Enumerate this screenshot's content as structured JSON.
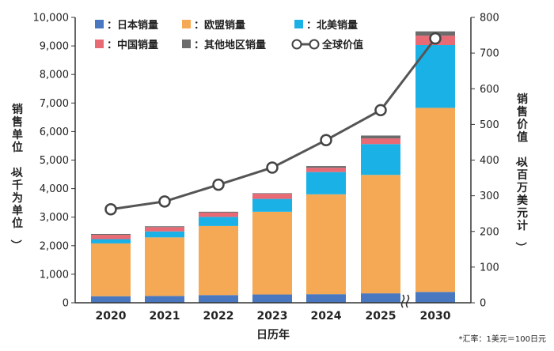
{
  "chart_data": {
    "type": "bar",
    "stacked": true,
    "categories": [
      "2020",
      "2021",
      "2022",
      "2023",
      "2024",
      "2025",
      "2030"
    ],
    "axis_break_before": "2030",
    "xlabel": "日历年",
    "ylabel_left": "销售单位（以千为单位）",
    "ylabel_right": "销售价值（以百万美元计）",
    "ylim_left": [
      0,
      10000
    ],
    "yticks_left": [
      "0",
      "1,000",
      "2,000",
      "3,000",
      "4,000",
      "5,000",
      "6,000",
      "7,000",
      "8,000",
      "9,000",
      "10,000"
    ],
    "ylim_right": [
      0,
      800
    ],
    "yticks_right": [
      "0",
      "100",
      "200",
      "300",
      "400",
      "500",
      "600",
      "700",
      "800"
    ],
    "series": [
      {
        "name": "日本销量",
        "color": "#4a78c0",
        "values": [
          230,
          240,
          270,
          290,
          300,
          330,
          380
        ]
      },
      {
        "name": "欧盟销量",
        "color": "#f5a955",
        "values": [
          1850,
          2050,
          2420,
          2900,
          3500,
          4150,
          6450
        ]
      },
      {
        "name": "北美销量",
        "color": "#1ab1e6",
        "values": [
          150,
          210,
          320,
          450,
          780,
          1080,
          2200
        ]
      },
      {
        "name": "中国销量",
        "color": "#e86a74",
        "values": [
          150,
          150,
          150,
          180,
          150,
          200,
          330
        ]
      },
      {
        "name": "其他地区销量",
        "color": "#6b6b6b",
        "values": [
          30,
          30,
          30,
          20,
          60,
          100,
          150
        ]
      }
    ],
    "line_series": {
      "name": "全球价值",
      "color": "#555555",
      "axis": "right",
      "values": [
        262,
        284,
        331,
        379,
        456,
        540,
        741
      ]
    },
    "legend_placement": "top",
    "grid": false,
    "note": "*汇率：1美元＝100日元"
  }
}
